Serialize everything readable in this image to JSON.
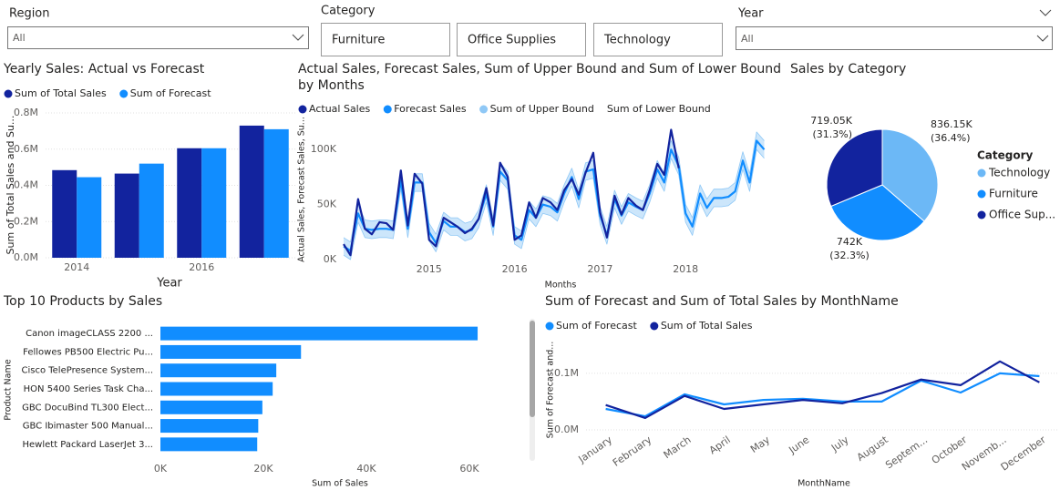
{
  "slicers": {
    "region": {
      "label": "Region",
      "value": "All"
    },
    "category": {
      "label": "Category",
      "options": [
        "Furniture",
        "Office Supplies",
        "Technology"
      ]
    },
    "year": {
      "label": "Year",
      "value": "All"
    }
  },
  "chart_data": [
    {
      "type": "bar",
      "title": "Yearly Sales: Actual vs Forecast",
      "x_label": "Year",
      "y_label": "Sum of Total Sales and Su...",
      "categories": [
        "2014",
        null,
        "2016",
        null
      ],
      "series": [
        {
          "name": "Sum of Total Sales",
          "color": "#12239e",
          "values": [
            484000,
            465000,
            605000,
            730000
          ]
        },
        {
          "name": "Sum of Forecast",
          "color": "#118dff",
          "values": [
            445000,
            520000,
            605000,
            710000
          ]
        }
      ],
      "ylim": [
        0,
        800000
      ],
      "yticks": [
        {
          "value": 0,
          "label": "0.0M"
        },
        {
          "value": 200000,
          "label": "0.2M"
        },
        {
          "value": 400000,
          "label": "0.4M"
        },
        {
          "value": 600000,
          "label": "0.6M"
        },
        {
          "value": 800000,
          "label": "0.8M"
        }
      ],
      "grid": true
    },
    {
      "type": "line",
      "title": "Actual Sales, Forecast Sales, Sum of Upper Bound and Sum of Lower Bound by Months",
      "x_label": "Months",
      "y_label": "Actual Sales, Forecast Sales, Su...",
      "x": [
        2014,
        2014.08,
        2014.17,
        2014.25,
        2014.33,
        2014.42,
        2014.5,
        2014.58,
        2014.67,
        2014.75,
        2014.83,
        2014.92,
        2015,
        2015.08,
        2015.17,
        2015.25,
        2015.33,
        2015.42,
        2015.5,
        2015.58,
        2015.67,
        2015.75,
        2015.83,
        2015.92,
        2016,
        2016.08,
        2016.17,
        2016.25,
        2016.33,
        2016.42,
        2016.5,
        2016.58,
        2016.67,
        2016.75,
        2016.83,
        2016.92,
        2017,
        2017.08,
        2017.17,
        2017.25,
        2017.33,
        2017.42,
        2017.5,
        2017.58,
        2017.67,
        2017.75,
        2017.83,
        2017.92,
        2018,
        2018.08,
        2018.17,
        2018.25,
        2018.33,
        2018.42,
        2018.5,
        2018.58,
        2018.67,
        2018.75,
        2018.83,
        2018.92
      ],
      "series": [
        {
          "name": "Sum of Upper Bound",
          "color": "#8fc8f6",
          "values": [
            20000,
            16000,
            50000,
            36000,
            35000,
            36000,
            36000,
            35000,
            80000,
            36000,
            78000,
            78000,
            33000,
            23000,
            43000,
            38000,
            38000,
            33000,
            35000,
            45000,
            68000,
            38000,
            88000,
            80000,
            30000,
            26000,
            53000,
            46000,
            58000,
            56000,
            51000,
            68000,
            83000,
            63000,
            88000,
            90000,
            48000,
            30000,
            63000,
            48000,
            60000,
            56000,
            53000,
            68000,
            90000,
            78000,
            108000,
            93000,
            50000,
            38000,
            68000,
            55000,
            64000,
            64000,
            65000,
            70000,
            98000,
            78000,
            116000,
            108000
          ]
        },
        {
          "name": "Sum of Lower Bound",
          "values": [
            4000,
            0,
            34000,
            20000,
            19000,
            20000,
            20000,
            19000,
            64000,
            20000,
            62000,
            62000,
            17000,
            7000,
            27000,
            22000,
            22000,
            17000,
            19000,
            29000,
            52000,
            22000,
            72000,
            64000,
            14000,
            10000,
            37000,
            30000,
            42000,
            40000,
            35000,
            52000,
            67000,
            47000,
            72000,
            74000,
            32000,
            14000,
            47000,
            32000,
            44000,
            40000,
            37000,
            52000,
            74000,
            62000,
            92000,
            77000,
            34000,
            22000,
            52000,
            39000,
            48000,
            48000,
            49000,
            54000,
            82000,
            62000,
            100000,
            92000
          ]
        },
        {
          "name": "Forecast Sales",
          "color": "#118dff",
          "values": [
            12000,
            8000,
            42000,
            28000,
            27000,
            28000,
            28000,
            27000,
            72000,
            28000,
            70000,
            70000,
            25000,
            15000,
            35000,
            30000,
            30000,
            25000,
            27000,
            37000,
            60000,
            30000,
            80000,
            72000,
            22000,
            18000,
            45000,
            38000,
            50000,
            48000,
            43000,
            60000,
            75000,
            55000,
            80000,
            82000,
            40000,
            22000,
            55000,
            40000,
            52000,
            48000,
            45000,
            60000,
            82000,
            70000,
            100000,
            85000,
            42000,
            30000,
            60000,
            47000,
            56000,
            56000,
            57000,
            62000,
            90000,
            70000,
            108000,
            100000
          ]
        },
        {
          "name": "Actual Sales",
          "color": "#12239e",
          "values": [
            14000,
            4000,
            55000,
            28000,
            23000,
            34000,
            33000,
            27000,
            81000,
            31000,
            78000,
            69000,
            18000,
            12000,
            38000,
            34000,
            30000,
            24000,
            28000,
            37000,
            65000,
            31000,
            88000,
            75000,
            18000,
            22000,
            52000,
            38000,
            56000,
            52000,
            45000,
            63000,
            73000,
            59000,
            79000,
            97000,
            43000,
            20000,
            58000,
            41000,
            56000,
            49000,
            45000,
            63000,
            87000,
            77000,
            118000,
            83000,
            null,
            null,
            null,
            null,
            null,
            null,
            null,
            null,
            null,
            null,
            null,
            null
          ]
        }
      ],
      "legend_order": [
        3,
        2,
        0,
        1
      ],
      "band": true,
      "xlim": [
        2014,
        2019
      ],
      "xticks": [
        2015,
        2016,
        2017,
        2018
      ],
      "ylim": [
        0,
        125000
      ],
      "yticks": [
        {
          "value": 0,
          "label": "0K"
        },
        {
          "value": 50000,
          "label": "50K"
        },
        {
          "value": 100000,
          "label": "100K"
        }
      ],
      "grid": false
    },
    {
      "type": "pie",
      "title": "Sales by Category",
      "legend_title": "Category",
      "categories": [
        "Technology",
        "Furniture",
        "Office Sup..."
      ],
      "values": [
        836150,
        742000,
        719050
      ],
      "value_labels": [
        "836.15K",
        "742K",
        "719.05K"
      ],
      "percent_labels": [
        "(36.4%)",
        "(32.3%)",
        "(31.3%)"
      ],
      "colors": [
        "#6cb8f6",
        "#118dff",
        "#12239e"
      ]
    },
    {
      "type": "bar",
      "orientation": "horizontal",
      "title": "Top 10 Products by Sales",
      "x_label": "Sum of Sales",
      "y_label": "Product Name",
      "categories": [
        "Canon imageCLASS 2200 ...",
        "Fellowes PB500 Electric Pu...",
        "Cisco TelePresence System...",
        "HON 5400 Series Task Cha...",
        "GBC DocuBind TL300 Elect...",
        "GBC Ibimaster 500 Manual...",
        "Hewlett Packard LaserJet 3..."
      ],
      "values": [
        61600,
        27300,
        22500,
        21800,
        19800,
        19000,
        18800
      ],
      "color": "#118dff",
      "xlim": [
        0,
        70000
      ],
      "xticks": [
        {
          "value": 0,
          "label": "0K"
        },
        {
          "value": 20000,
          "label": "20K"
        },
        {
          "value": 40000,
          "label": "40K"
        },
        {
          "value": 60000,
          "label": "60K"
        }
      ],
      "grid": false
    },
    {
      "type": "line",
      "title": "Sum of Forecast and Sum of Total Sales by MonthName",
      "x_label": "MonthName",
      "y_label": "Sum of Forecast and...",
      "categories": [
        "January",
        "February",
        "March",
        "April",
        "May",
        "June",
        "July",
        "August",
        "Septem...",
        "October",
        "Novemb...",
        "December"
      ],
      "series": [
        {
          "name": "Sum of Forecast",
          "color": "#118dff",
          "values": [
            37000,
            24000,
            63000,
            45000,
            53000,
            55000,
            50000,
            50000,
            87000,
            66000,
            100000,
            95000
          ]
        },
        {
          "name": "Sum of Total Sales",
          "color": "#12239e",
          "values": [
            44000,
            21000,
            60000,
            37000,
            45000,
            53000,
            47000,
            65000,
            89000,
            79000,
            121000,
            84000
          ]
        }
      ],
      "ylim": [
        0,
        140000
      ],
      "yticks": [
        {
          "value": 0,
          "label": "0.0M"
        },
        {
          "value": 100000,
          "label": "0.1M"
        }
      ],
      "grid": true
    }
  ]
}
